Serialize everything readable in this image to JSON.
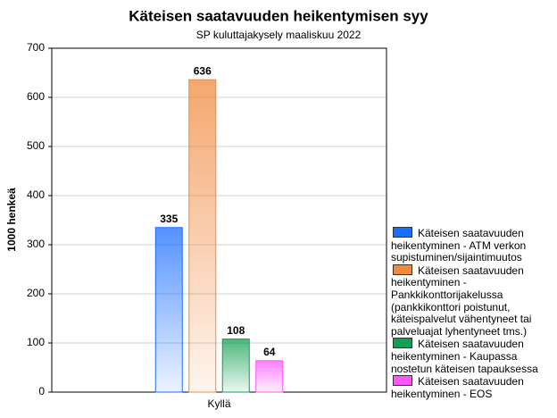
{
  "chart_data": {
    "type": "bar",
    "title": "Käteisen saatavuuden heikentymisen syy",
    "subtitle": "SP kuluttajakysely maaliskuu 2022",
    "y_label": "1000 henkeä",
    "categories": [
      "Kyllä"
    ],
    "series": [
      {
        "name": "Käteisen saatavuuden heikentyminen - ATM verkon supistuminen/sijaintimuutos",
        "color": "#1a6eff",
        "values": [
          335
        ]
      },
      {
        "name": "Käteisen saatavuuden heikentyminen - Pankkikonttorijakelussa (pankkikonttori poistunut, käteispalvelut vähentyneet tai palveluajat lyhentyneet tms.)",
        "color": "#f08a3c",
        "values": [
          636
        ]
      },
      {
        "name": "Käteisen saatavuuden heikentyminen - Kaupassa nostetun käteisen tapauksessa",
        "color": "#0fa050",
        "values": [
          108
        ]
      },
      {
        "name": "Käteisen saatavuuden heikentyminen - EOS",
        "color": "#ff55ff",
        "values": [
          64
        ]
      }
    ],
    "ylim": [
      0,
      700
    ],
    "yticks": [
      0,
      100,
      200,
      300,
      400,
      500,
      600,
      700
    ],
    "grid": true
  }
}
